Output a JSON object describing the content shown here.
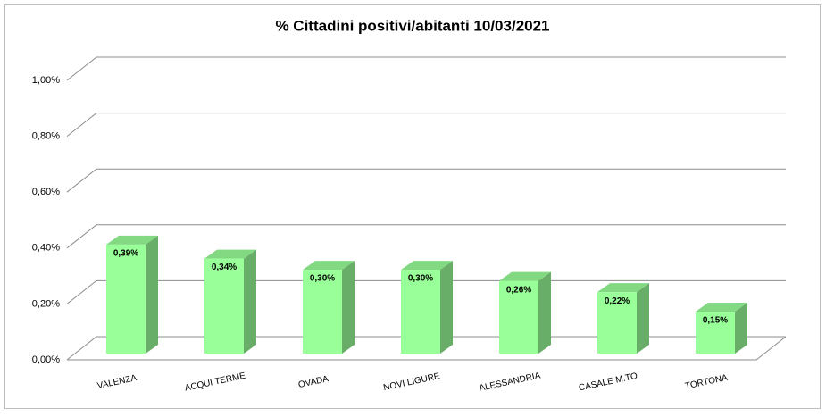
{
  "chart_data": {
    "type": "bar3d",
    "title": "% Cittadini positivi/abitanti 10/03/2021",
    "categories": [
      "VALENZA",
      "ACQUI TERME",
      "OVADA",
      "NOVI LIGURE",
      "ALESSANDRIA",
      "CASALE M.TO",
      "TORTONA"
    ],
    "values": [
      0.39,
      0.34,
      0.3,
      0.3,
      0.26,
      0.22,
      0.15
    ],
    "value_labels": [
      "0,39%",
      "0,34%",
      "0,30%",
      "0,30%",
      "0,26%",
      "0,22%",
      "0,15%"
    ],
    "color": "#99ff99",
    "ylim": [
      0,
      1
    ],
    "yticks": [
      {
        "value": 0,
        "label": "0,00%"
      },
      {
        "value": 0.2,
        "label": "0,20%"
      },
      {
        "value": 0.4,
        "label": "0,40%"
      },
      {
        "value": 0.6,
        "label": "0,60%"
      },
      {
        "value": 0.8,
        "label": "0,80%"
      },
      {
        "value": 1,
        "label": "1,00%"
      }
    ],
    "grid": true
  }
}
